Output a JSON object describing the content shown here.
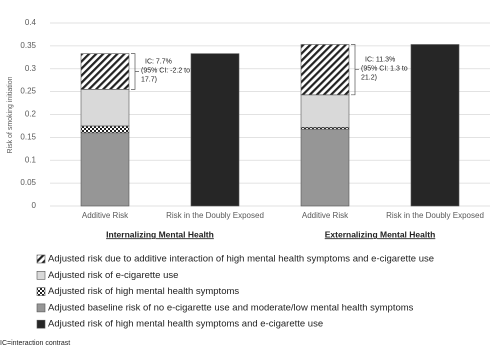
{
  "chart_data": {
    "type": "stacked_bar",
    "y_label": "Risk of smoking initiation",
    "categories": [
      "Additive Risk",
      "Risk in the Doubly Exposed",
      "Additive Risk",
      "Risk in the Doubly Exposed"
    ],
    "groups": [
      "Internalizing Mental Health",
      "Externalizing Mental Health"
    ],
    "series": [
      {
        "name": "Adjusted risk due to additive interaction of high mental health symptoms and e-cigarette use",
        "color": "#ffffff",
        "pattern": "hatch",
        "values": [
          0.078,
          null,
          0.11,
          null
        ]
      },
      {
        "name": "Adjusted risk of e-cigarette use",
        "color": "#d9d9d9",
        "values": [
          0.08,
          null,
          0.071,
          null
        ]
      },
      {
        "name": "Adjusted risk of high mental health symptoms",
        "color": "#ffffff",
        "pattern": "checker",
        "values": [
          0.015,
          null,
          0.004,
          null
        ]
      },
      {
        "name": "Adjusted baseline risk of no e-cigarette use and moderate/low mental health symptoms",
        "color": "#969696",
        "values": [
          0.16,
          null,
          0.168,
          null
        ]
      },
      {
        "name": "Adjusted risk of high mental health symptoms and e-cigarette use",
        "color": "#262626",
        "values": [
          null,
          0.333,
          null,
          0.353
        ]
      }
    ],
    "annotations": [
      [
        "IC: 7.7%",
        "(95% CI: -2.2 to",
        "17.7)"
      ],
      [
        "IC: 11.3%",
        "(95% CI: 1.3 to",
        "21.2)"
      ]
    ],
    "ylim": [
      0,
      0.4
    ],
    "yticks": [
      0,
      0.05,
      0.1,
      0.15,
      0.2,
      0.25,
      0.3,
      0.35,
      0.4
    ],
    "grid": true,
    "footnote": "IC=interaction contrast"
  }
}
